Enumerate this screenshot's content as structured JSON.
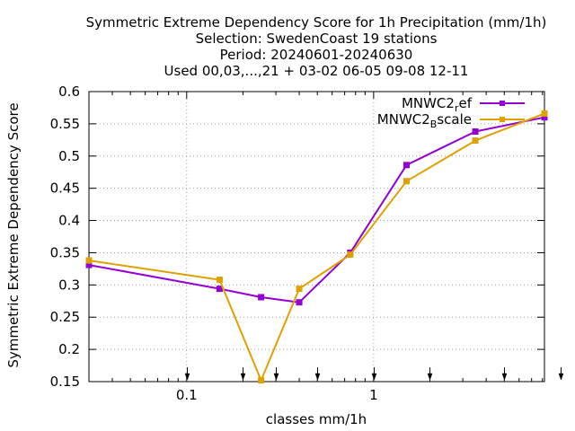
{
  "chart_data": {
    "type": "line",
    "title_lines": [
      "Symmetric Extreme Dependency Score  for 1h Precipitation (mm/1h)",
      "Selection: SwedenCoast     19 stations",
      "Period: 20240601-20240630",
      "Used 00,03,...,21 + 03-02 06-05 09-08 12-11"
    ],
    "xlabel": "classes mm/1h",
    "ylabel": "Symmetric Extreme Dependency Score",
    "x_scale": "log",
    "xlim": [
      0.03,
      8.2
    ],
    "ylim": [
      0.15,
      0.6
    ],
    "x_ticks": [
      {
        "value": 0.1,
        "label": "0.1"
      },
      {
        "value": 1,
        "label": "1"
      }
    ],
    "y_ticks": [
      {
        "value": 0.15,
        "label": "0.15"
      },
      {
        "value": 0.2,
        "label": "0.2"
      },
      {
        "value": 0.25,
        "label": "0.25"
      },
      {
        "value": 0.3,
        "label": "0.3"
      },
      {
        "value": 0.35,
        "label": "0.35"
      },
      {
        "value": 0.4,
        "label": "0.4"
      },
      {
        "value": 0.45,
        "label": "0.45"
      },
      {
        "value": 0.5,
        "label": "0.5"
      },
      {
        "value": 0.55,
        "label": "0.55"
      },
      {
        "value": 0.6,
        "label": "0.6"
      }
    ],
    "class_arrows_x": [
      0.1,
      0.2,
      0.3,
      0.5,
      1,
      2,
      5,
      10
    ],
    "grid": true,
    "legend_position": "top-right",
    "series": [
      {
        "name": "MNWC2_ref",
        "legend_base": "MNWC2",
        "legend_sub": "r",
        "legend_rest": "ef",
        "color": "#9400d3",
        "x": [
          0.03,
          0.15,
          0.25,
          0.4,
          0.75,
          1.5,
          3.5,
          8.2
        ],
        "y": [
          0.331,
          0.294,
          0.281,
          0.273,
          0.35,
          0.486,
          0.538,
          0.56
        ]
      },
      {
        "name": "MNWC2_Bscale",
        "legend_base": "MNWC2",
        "legend_sub": "B",
        "legend_rest": "scale",
        "color": "#e0a000",
        "x": [
          0.03,
          0.15,
          0.25,
          0.4,
          0.75,
          1.5,
          3.5,
          8.2
        ],
        "y": [
          0.338,
          0.308,
          0.152,
          0.294,
          0.347,
          0.461,
          0.524,
          0.566
        ]
      }
    ]
  }
}
